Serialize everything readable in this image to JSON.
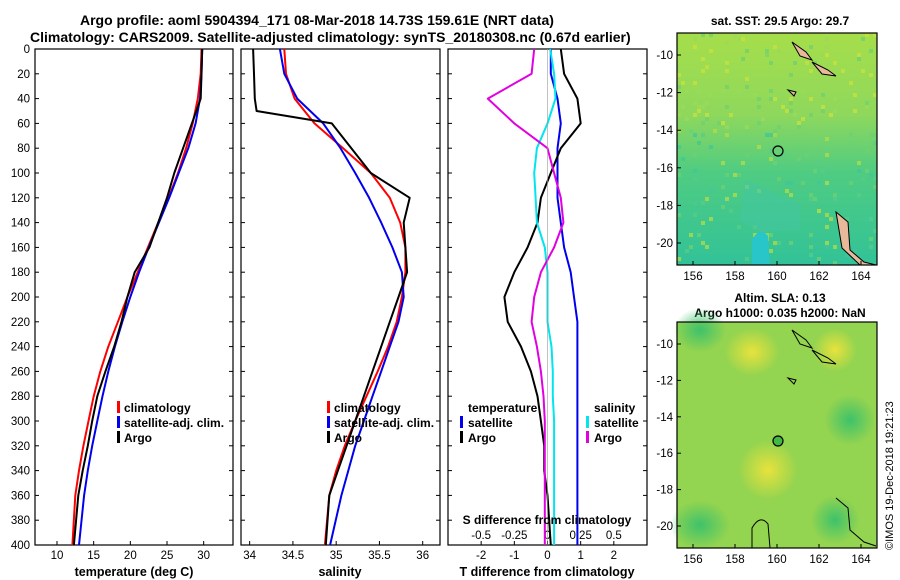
{
  "title": {
    "line1": "Argo profile: aoml 5904394_171 08-Mar-2018 14.73S 159.61E (NRT data)",
    "line2": "Climatology: CARS2009. Satellite-adjusted climatology: synTS_20180308.nc (0.67d earlier)"
  },
  "colors": {
    "climatology": "#ff0000",
    "satellite": "#0000ee",
    "argo": "#000000",
    "t_satellite": "#00e5ee",
    "s_argo": "#e000e0"
  },
  "depth_axis": {
    "ticks": [
      "0",
      "20",
      "40",
      "60",
      "80",
      "100",
      "120",
      "140",
      "160",
      "180",
      "200",
      "220",
      "240",
      "260",
      "280",
      "300",
      "320",
      "340",
      "360",
      "380",
      "400"
    ]
  },
  "temperature_panel": {
    "xlabel": "temperature (deg C)",
    "ticks": [
      "10",
      "15",
      "20",
      "25",
      "30"
    ],
    "legend": [
      "climatology",
      "satellite-adj. clim.",
      "Argo"
    ]
  },
  "salinity_panel": {
    "xlabel": "salinity",
    "ticks": [
      "34",
      "34.5",
      "35",
      "35.5",
      "36"
    ],
    "legend": [
      "climatology",
      "satellite-adj. clim.",
      "Argo"
    ]
  },
  "diff_panel": {
    "xlabel": "T difference from climatology",
    "ticks": [
      "-2",
      "-1",
      "0",
      "1",
      "2"
    ],
    "s_axis_title": "S difference from climatology",
    "s_ticks": [
      "-0.5",
      "-0.25",
      "0",
      "0.25",
      "0.5"
    ],
    "legend_temperature": {
      "title": "temperature",
      "items": [
        "satellite",
        "Argo"
      ]
    },
    "legend_salinity": {
      "title": "salinity",
      "items": [
        "satellite",
        "Argo"
      ]
    }
  },
  "sst_map": {
    "title": "sat. SST: 29.5 Argo: 29.7",
    "lat_ticks": [
      "-10",
      "-12",
      "-14",
      "-16",
      "-18",
      "-20"
    ],
    "lon_ticks": [
      "156",
      "158",
      "160",
      "162",
      "164"
    ]
  },
  "sla_map": {
    "title_line1": "Altim. SLA: 0.13",
    "title_line2": "Argo h1000: 0.035 h2000: NaN",
    "lat_ticks": [
      "-10",
      "-12",
      "-14",
      "-16",
      "-18",
      "-20"
    ],
    "lon_ticks": [
      "156",
      "158",
      "160",
      "162",
      "164"
    ]
  },
  "footer": {
    "credit": "©IMOS 19-Dec-2018 19:21:23"
  },
  "chart_data": [
    {
      "type": "line",
      "title": "temperature",
      "xlabel": "temperature (deg C)",
      "ylabel": "depth",
      "xlim": [
        7,
        34
      ],
      "ylim": [
        400,
        0
      ],
      "series": [
        {
          "name": "climatology",
          "color": "#ff0000",
          "x": [
            29.7,
            29.6,
            29.2,
            28.5,
            27.6,
            26.5,
            25.2,
            23.8,
            22.4,
            21.0,
            19.6,
            18.3,
            17.0,
            15.9,
            15.0,
            14.3,
            13.6,
            13.0,
            12.5,
            12.1
          ],
          "y": [
            0,
            20,
            40,
            60,
            80,
            100,
            120,
            140,
            160,
            180,
            200,
            220,
            240,
            260,
            280,
            300,
            320,
            340,
            360,
            400
          ]
        },
        {
          "name": "satellite-adj. clim.",
          "color": "#0000ee",
          "x": [
            29.8,
            29.7,
            29.5,
            28.9,
            27.9,
            26.6,
            25.3,
            23.9,
            22.5,
            21.2,
            20.0,
            18.9,
            17.9,
            17.0,
            16.2,
            15.5,
            14.8,
            14.2,
            13.7,
            13.0
          ],
          "y": [
            0,
            20,
            40,
            60,
            80,
            100,
            120,
            140,
            160,
            180,
            200,
            220,
            240,
            260,
            280,
            300,
            320,
            340,
            360,
            400
          ]
        },
        {
          "name": "Argo",
          "color": "#000000",
          "x": [
            29.8,
            29.7,
            29.6,
            28.4,
            27.2,
            26.0,
            25.0,
            23.8,
            22.6,
            20.6,
            19.6,
            18.8,
            17.8,
            16.6,
            15.5,
            14.8,
            14.2,
            13.5,
            12.9,
            12.3
          ],
          "y": [
            0,
            20,
            40,
            60,
            80,
            100,
            120,
            140,
            160,
            180,
            200,
            220,
            240,
            260,
            280,
            300,
            320,
            340,
            360,
            400
          ]
        }
      ]
    },
    {
      "type": "line",
      "title": "salinity",
      "xlabel": "salinity",
      "ylabel": "depth",
      "xlim": [
        33.9,
        36.2
      ],
      "ylim": [
        400,
        0
      ],
      "series": [
        {
          "name": "climatology",
          "color": "#ff0000",
          "x": [
            34.4,
            34.42,
            34.52,
            34.75,
            35.08,
            35.4,
            35.62,
            35.74,
            35.8,
            35.8,
            35.76,
            35.7,
            35.6,
            35.48,
            35.35,
            35.22,
            35.1,
            35.0,
            34.92,
            34.87
          ],
          "y": [
            0,
            20,
            40,
            60,
            80,
            100,
            120,
            140,
            160,
            180,
            200,
            220,
            240,
            260,
            280,
            300,
            320,
            340,
            360,
            400
          ]
        },
        {
          "name": "satellite-adj. clim.",
          "color": "#0000ee",
          "x": [
            34.35,
            34.4,
            34.55,
            34.85,
            35.05,
            35.22,
            35.38,
            35.52,
            35.65,
            35.76,
            35.78,
            35.72,
            35.62,
            35.52,
            35.42,
            35.32,
            35.22,
            35.14,
            35.06,
            34.93
          ],
          "y": [
            0,
            20,
            40,
            60,
            80,
            100,
            120,
            140,
            160,
            180,
            200,
            220,
            240,
            260,
            280,
            300,
            320,
            340,
            360,
            400
          ]
        },
        {
          "name": "Argo",
          "color": "#000000",
          "x": [
            34.04,
            34.05,
            34.06,
            34.08,
            34.95,
            35.4,
            35.85,
            35.78,
            35.8,
            35.82,
            35.72,
            35.62,
            35.52,
            35.42,
            35.32,
            35.22,
            35.12,
            35.02,
            34.92,
            34.88
          ],
          "y": [
            0,
            20,
            40,
            50,
            60,
            100,
            120,
            140,
            160,
            180,
            200,
            220,
            240,
            260,
            280,
            300,
            320,
            340,
            360,
            400
          ]
        }
      ]
    },
    {
      "type": "line",
      "title": "difference from climatology",
      "xlabel": "T difference from climatology",
      "x2label": "S difference from climatology",
      "xlim": [
        -3,
        3
      ],
      "x2lim": [
        -0.75,
        0.75
      ],
      "ylim": [
        400,
        0
      ],
      "series": [
        {
          "name": "temperature satellite",
          "color": "#0000ee",
          "axis": "T",
          "x": [
            0.1,
            0.1,
            0.3,
            0.4,
            0.3,
            0.3,
            0.3,
            0.4,
            0.5,
            0.7,
            0.8,
            0.9,
            0.9,
            0.9,
            0.9,
            0.9,
            0.9,
            0.9,
            0.9,
            0.9
          ],
          "y": [
            0,
            20,
            40,
            60,
            80,
            100,
            120,
            140,
            160,
            180,
            200,
            220,
            240,
            260,
            280,
            300,
            320,
            340,
            360,
            400
          ]
        },
        {
          "name": "temperature Argo",
          "color": "#000000",
          "axis": "T",
          "x": [
            0.4,
            0.5,
            0.9,
            1.0,
            0.4,
            0.1,
            -0.2,
            -0.3,
            -0.6,
            -1.0,
            -1.3,
            -1.2,
            -0.8,
            -0.5,
            -0.3,
            -0.2,
            -0.1,
            -0.1,
            0.0,
            0.1
          ],
          "y": [
            0,
            20,
            40,
            60,
            80,
            100,
            120,
            140,
            160,
            180,
            200,
            220,
            240,
            260,
            280,
            300,
            320,
            340,
            360,
            400
          ]
        },
        {
          "name": "salinity satellite",
          "color": "#00e5ee",
          "axis": "S",
          "x": [
            0.02,
            0.05,
            0.06,
            0.0,
            -0.08,
            -0.1,
            -0.09,
            -0.08,
            -0.02,
            0.0,
            0.0,
            0.0,
            0.03,
            0.04,
            0.04,
            0.05,
            0.05,
            0.05,
            0.05,
            0.05
          ],
          "y": [
            0,
            20,
            40,
            60,
            80,
            100,
            120,
            140,
            160,
            180,
            200,
            220,
            240,
            260,
            280,
            300,
            320,
            340,
            360,
            400
          ]
        },
        {
          "name": "salinity Argo",
          "color": "#e000e0",
          "axis": "S",
          "x": [
            -0.1,
            -0.12,
            -0.45,
            -0.25,
            0.0,
            0.05,
            0.1,
            0.12,
            0.05,
            -0.05,
            -0.1,
            -0.12,
            -0.08,
            -0.05,
            -0.03,
            -0.02,
            -0.02,
            -0.02,
            -0.02,
            -0.02
          ],
          "y": [
            0,
            20,
            40,
            60,
            80,
            100,
            120,
            140,
            160,
            180,
            200,
            220,
            240,
            260,
            280,
            300,
            320,
            340,
            360,
            400
          ]
        }
      ]
    }
  ]
}
